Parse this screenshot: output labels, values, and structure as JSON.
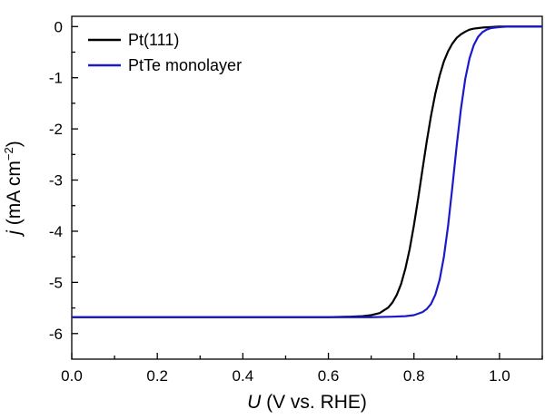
{
  "chart_data": {
    "type": "line",
    "xlabel_italic": "U",
    "xlabel_rest": " (V vs. RHE)",
    "ylabel_italic": "j",
    "ylabel_rest": " (mA cm",
    "ylabel_sup": "−2",
    "ylabel_close": ")",
    "xlim": [
      0.0,
      1.1
    ],
    "ylim": [
      -6.5,
      0.2
    ],
    "xticks": [
      0.0,
      0.2,
      0.4,
      0.6,
      0.8,
      1.0
    ],
    "xtick_labels": [
      "0.0",
      "0.2",
      "0.4",
      "0.6",
      "0.8",
      "1.0"
    ],
    "yticks": [
      0,
      -1,
      -2,
      -3,
      -4,
      -5,
      -6
    ],
    "ytick_labels": [
      "0",
      "-1",
      "-2",
      "-3",
      "-4",
      "-5",
      "-6"
    ],
    "legend_position": "top-left",
    "series": [
      {
        "name": "Pt(111)",
        "color": "#000000",
        "x": [
          0.0,
          0.6,
          0.65,
          0.68,
          0.7,
          0.72,
          0.74,
          0.75,
          0.76,
          0.77,
          0.78,
          0.79,
          0.8,
          0.81,
          0.82,
          0.83,
          0.84,
          0.85,
          0.86,
          0.87,
          0.88,
          0.89,
          0.9,
          0.91,
          0.92,
          0.93,
          0.94,
          0.95,
          0.96,
          0.98,
          1.0,
          1.1
        ],
        "y": [
          -5.68,
          -5.68,
          -5.67,
          -5.66,
          -5.64,
          -5.6,
          -5.49,
          -5.39,
          -5.24,
          -5.03,
          -4.73,
          -4.35,
          -3.88,
          -3.35,
          -2.79,
          -2.24,
          -1.74,
          -1.31,
          -0.96,
          -0.68,
          -0.48,
          -0.33,
          -0.22,
          -0.15,
          -0.1,
          -0.06,
          -0.04,
          -0.03,
          -0.02,
          -0.01,
          0.0,
          0.0
        ]
      },
      {
        "name": "PtTe monolayer",
        "color": "#1a1acc",
        "x": [
          0.0,
          0.7,
          0.75,
          0.78,
          0.8,
          0.82,
          0.83,
          0.84,
          0.85,
          0.86,
          0.87,
          0.88,
          0.89,
          0.9,
          0.91,
          0.92,
          0.93,
          0.94,
          0.95,
          0.96,
          0.97,
          0.98,
          0.99,
          1.0,
          1.02,
          1.1
        ],
        "y": [
          -5.68,
          -5.68,
          -5.67,
          -5.66,
          -5.64,
          -5.58,
          -5.52,
          -5.42,
          -5.24,
          -4.95,
          -4.5,
          -3.88,
          -3.12,
          -2.32,
          -1.6,
          -1.02,
          -0.62,
          -0.36,
          -0.2,
          -0.11,
          -0.06,
          -0.03,
          -0.02,
          -0.01,
          0.0,
          0.0
        ]
      }
    ]
  }
}
